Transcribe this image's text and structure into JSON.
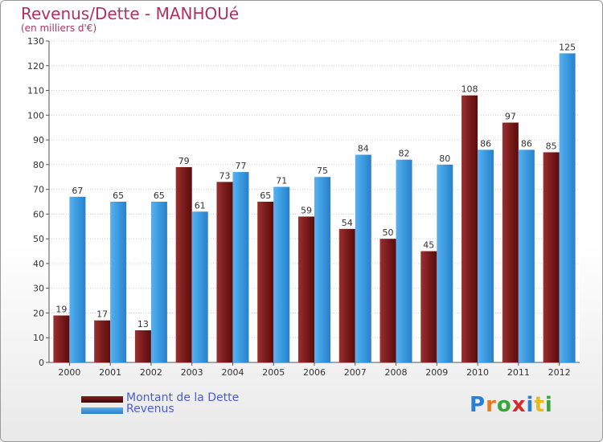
{
  "title": "Revenus/Dette - MANHOUé",
  "subtitle": "(en milliers d'€)",
  "logo": {
    "text": "Proxiti",
    "letters": [
      "P",
      "r",
      "o",
      "x",
      "i",
      "t",
      "i"
    ],
    "colors": [
      "#2a7fd4",
      "#e87a1e",
      "#3aa63a",
      "#d42a2a",
      "#2a7fd4",
      "#e8b81e",
      "#3aa63a"
    ]
  },
  "colors": {
    "dette": "#7a1c1c",
    "revenus": "#3a9ae0",
    "title": "#b03060",
    "legend_text": "#4a5cd0"
  },
  "legend": [
    {
      "label": "Montant de la Dette",
      "color": "#6b1010"
    },
    {
      "label": "Revenus",
      "color": "#3a9ae0"
    }
  ],
  "chart_data": {
    "type": "bar",
    "title": "Revenus/Dette - MANHOUé",
    "subtitle": "(en milliers d'€)",
    "categories": [
      "2000",
      "2001",
      "2002",
      "2003",
      "2004",
      "2005",
      "2006",
      "2007",
      "2008",
      "2009",
      "2010",
      "2011",
      "2012"
    ],
    "series": [
      {
        "name": "Montant de la Dette",
        "values": [
          19,
          17,
          13,
          79,
          73,
          65,
          59,
          54,
          50,
          45,
          108,
          97,
          85
        ]
      },
      {
        "name": "Revenus",
        "values": [
          67,
          65,
          65,
          61,
          77,
          71,
          75,
          84,
          82,
          80,
          86,
          86,
          125
        ]
      }
    ],
    "ylim": [
      0,
      130
    ],
    "yticks": [
      0,
      10,
      20,
      30,
      40,
      50,
      60,
      70,
      80,
      90,
      100,
      110,
      120,
      130
    ],
    "grid": true,
    "legend_position": "bottom-left"
  }
}
